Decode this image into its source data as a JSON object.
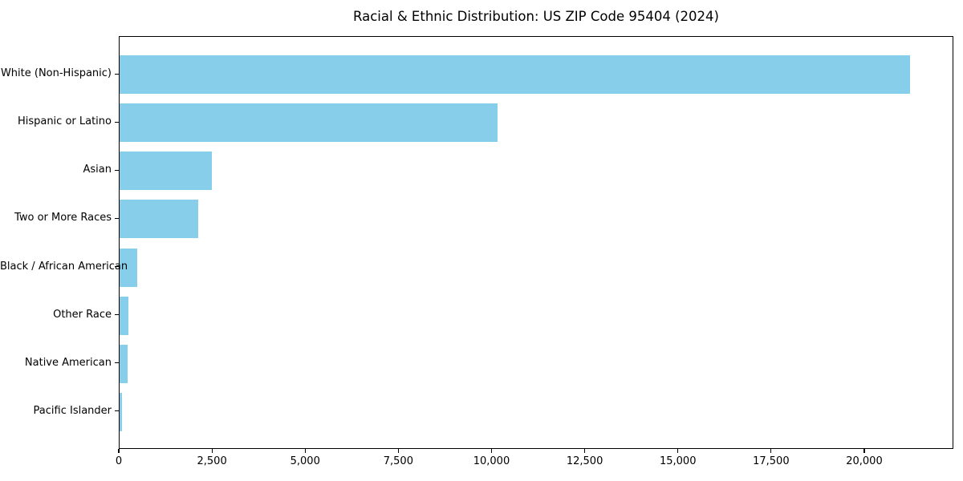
{
  "chart_data": {
    "type": "bar",
    "orientation": "horizontal",
    "title": "Racial & Ethnic Distribution: US ZIP Code 95404 (2024)",
    "categories": [
      "White (Non-Hispanic)",
      "Hispanic or Latino",
      "Asian",
      "Two or More Races",
      "Black / African American",
      "Other Race",
      "Native American",
      "Pacific Islander"
    ],
    "values": [
      21250,
      10150,
      2480,
      2110,
      475,
      240,
      215,
      55
    ],
    "xlabel": "",
    "ylabel": "",
    "xlim": [
      0,
      22390
    ],
    "xticks": [
      0,
      2500,
      5000,
      7500,
      10000,
      12500,
      15000,
      17500,
      20000
    ],
    "xtick_labels": [
      "0",
      "2,500",
      "5,000",
      "7,500",
      "10,000",
      "12,500",
      "15,000",
      "17,500",
      "20,000"
    ],
    "bar_color": "#87CEEB",
    "frame_color": "#000000",
    "background_color": "#ffffff",
    "grid": false,
    "legend": null
  }
}
